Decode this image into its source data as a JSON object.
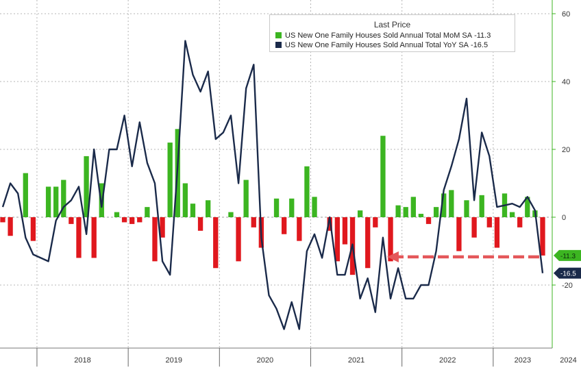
{
  "chart_data": {
    "type": "bar+line",
    "title": "",
    "xlabel": "",
    "ylabel": "",
    "ylim": [
      -35,
      62
    ],
    "yticks": [
      60,
      40,
      20,
      0,
      -20
    ],
    "ytick_labels": [
      "60",
      "40",
      "20",
      "0",
      "-20"
    ],
    "grid": true,
    "legend_position": "top-right",
    "legend_title": "Last Price",
    "x_start": "2017-08",
    "year_labels": [
      "2018",
      "2019",
      "2020",
      "2021",
      "2022",
      "2023",
      "2024"
    ],
    "series": [
      {
        "name": "US New One Family Houses Sold Annual Total MoM SA",
        "type": "bar",
        "last_value_label": "-11.3",
        "pos_color": "#3cb521",
        "neg_color": "#e0181e",
        "values": [
          -1.5,
          -5.5,
          0,
          13,
          -7,
          0,
          9,
          9,
          11,
          -2,
          -12,
          18,
          -12,
          10,
          0,
          1.5,
          -1.5,
          -2,
          -1.5,
          3,
          -13,
          -6,
          22,
          26,
          10,
          4,
          -4,
          5,
          -15,
          0,
          1.5,
          -13,
          11,
          -3,
          -9,
          0,
          5.5,
          -5,
          5.5,
          -7,
          15,
          6,
          0,
          -4,
          -13,
          -8,
          -17,
          2,
          -15,
          -3,
          24,
          -13,
          3.5,
          3,
          6,
          1,
          -2,
          3,
          7,
          8,
          -10,
          5,
          -6,
          6.5,
          -3,
          -9,
          7,
          1.5,
          -3,
          6,
          2,
          -11.3
        ]
      },
      {
        "name": "US New One Family Houses Sold Annual Total YoY SA",
        "type": "line",
        "last_value_label": "-16.5",
        "color": "#1a2a4a",
        "values": [
          3,
          10,
          7,
          -6,
          -11,
          -12,
          -13,
          -1,
          3,
          5,
          9,
          -5,
          20,
          3,
          20,
          20,
          30,
          15,
          28,
          16,
          10,
          -13,
          -17,
          15,
          52,
          42,
          37,
          43,
          23,
          25,
          30,
          10,
          38,
          45,
          -6,
          -23,
          -27,
          -33,
          -25,
          -33,
          -10,
          -5,
          -12,
          0,
          -17,
          -17,
          -8,
          -24,
          -18,
          -28,
          -6,
          -24,
          -15,
          -24,
          -24,
          -20,
          -20,
          -10,
          8,
          15,
          23,
          35,
          5,
          25,
          18,
          3,
          3.5,
          4,
          3,
          6,
          2,
          -16.5
        ]
      }
    ]
  }
}
